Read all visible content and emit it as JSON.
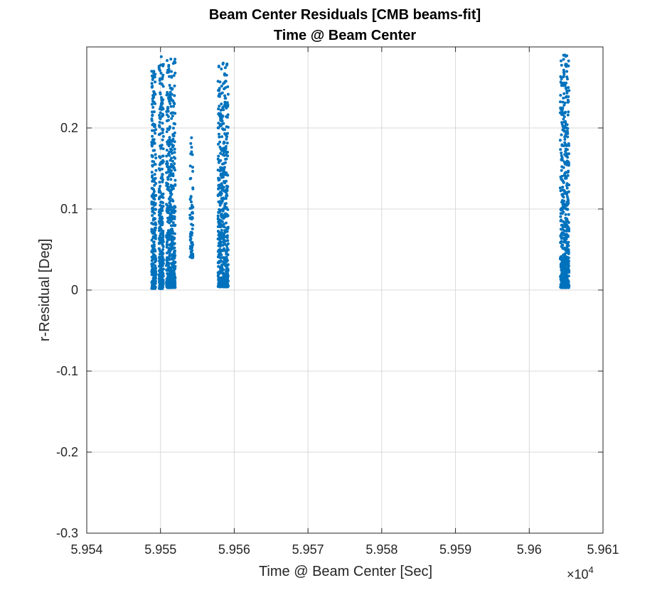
{
  "chart_data": {
    "type": "scatter",
    "title": "Beam Center Residuals [CMB beams-fit]",
    "subtitle": "Time @ Beam Center",
    "xlabel": "Time @ Beam Center [Sec]",
    "ylabel": "r-Residual [Deg]",
    "x_exponent_prefix": "×10",
    "x_exponent_power": "4",
    "xlim": [
      59540,
      59610
    ],
    "ylim": [
      -0.3,
      0.3
    ],
    "x_ticks": [
      59540,
      59550,
      59560,
      59570,
      59580,
      59590,
      59600,
      59610
    ],
    "x_tick_labels": [
      "5.954",
      "5.955",
      "5.956",
      "5.957",
      "5.958",
      "5.959",
      "5.96",
      "5.961"
    ],
    "y_ticks": [
      -0.3,
      -0.2,
      -0.1,
      0,
      0.1,
      0.2
    ],
    "y_tick_labels": [
      "-0.3",
      "-0.2",
      "-0.1",
      "0",
      "0.1",
      "0.2"
    ],
    "grid": true,
    "marker_color": "#0072BD",
    "clusters": [
      {
        "x_start": 59548.8,
        "x_end": 59549.4,
        "y_min": 0.002,
        "y_max": 0.27,
        "count": 260
      },
      {
        "x_start": 59549.8,
        "x_end": 59550.4,
        "y_min": 0.002,
        "y_max": 0.288,
        "count": 300
      },
      {
        "x_start": 59550.8,
        "x_end": 59552.0,
        "y_min": 0.003,
        "y_max": 0.285,
        "count": 520
      },
      {
        "x_start": 59554.0,
        "x_end": 59554.4,
        "y_min": 0.04,
        "y_max": 0.188,
        "count": 70
      },
      {
        "x_start": 59557.8,
        "x_end": 59559.2,
        "y_min": 0.004,
        "y_max": 0.28,
        "count": 560
      },
      {
        "x_start": 59604.2,
        "x_end": 59605.4,
        "y_min": 0.003,
        "y_max": 0.29,
        "count": 520
      }
    ]
  }
}
